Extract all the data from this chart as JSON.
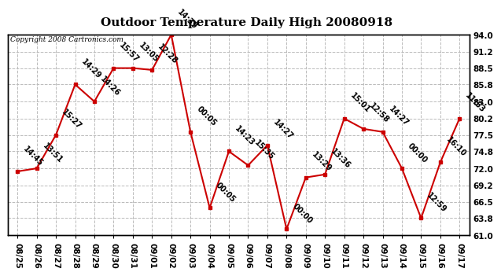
{
  "title": "Outdoor Temperature Daily High 20080918",
  "copyright": "Copyright 2008 Cartronics.com",
  "x_labels": [
    "08/25",
    "08/26",
    "08/27",
    "08/28",
    "08/29",
    "08/30",
    "08/31",
    "09/01",
    "09/02",
    "09/03",
    "09/04",
    "09/05",
    "09/06",
    "09/07",
    "09/08",
    "09/09",
    "09/10",
    "09/11",
    "09/12",
    "09/13",
    "09/14",
    "09/15",
    "09/16",
    "09/17"
  ],
  "y_values": [
    71.5,
    72.0,
    77.5,
    85.8,
    83.0,
    88.5,
    88.5,
    88.2,
    94.0,
    78.0,
    65.5,
    74.8,
    72.5,
    75.8,
    62.0,
    70.5,
    71.0,
    80.2,
    78.5,
    78.0,
    72.0,
    63.8,
    73.0,
    80.2
  ],
  "time_labels": [
    "14:45",
    "13:51",
    "15:27",
    "14:29",
    "14:26",
    "15:57",
    "13:05",
    "12:28",
    "14:39",
    "00:05",
    "00:05",
    "14:23",
    "15:35",
    "14:27",
    "00:00",
    "13:29",
    "13:36",
    "15:01",
    "12:58",
    "14:27",
    "00:00",
    "12:59",
    "16:10",
    "11:53"
  ],
  "y_ticks": [
    61.0,
    63.8,
    66.5,
    69.2,
    72.0,
    74.8,
    77.5,
    80.2,
    83.0,
    85.8,
    88.5,
    91.2,
    94.0
  ],
  "y_min": 61.0,
  "y_max": 94.0,
  "line_color": "#cc0000",
  "marker_color": "#cc0000",
  "background_color": "#ffffff",
  "grid_color": "#bbbbbb",
  "title_fontsize": 11,
  "tick_fontsize": 7.5,
  "annotation_fontsize": 7
}
